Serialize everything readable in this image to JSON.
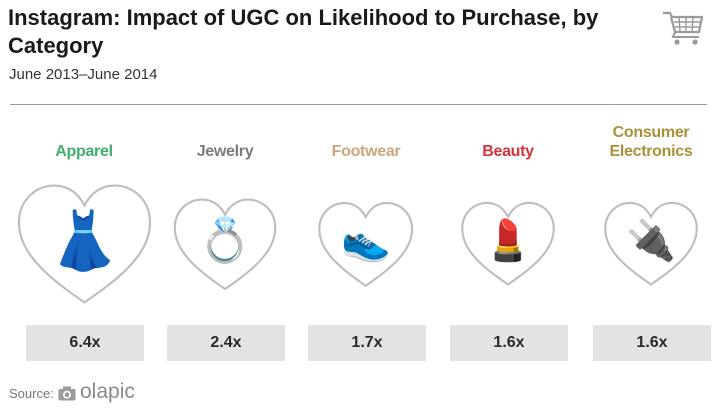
{
  "header": {
    "title": "Instagram: Impact of UGC on Likelihood to Purchase, by Category",
    "subtitle": "June 2013–June 2014"
  },
  "footer": {
    "source_label": "Source:",
    "brand": "olapic"
  },
  "icons": {
    "cart": "shopping-cart-icon",
    "camera": "camera-icon"
  },
  "chart_data": {
    "type": "bar",
    "title": "Instagram: Impact of UGC on Likelihood to Purchase, by Category",
    "subtitle": "June 2013–June 2014",
    "unit": "x",
    "categories": [
      {
        "label": "Apparel",
        "value": 6.4,
        "display": "6.4x",
        "color": "#3fae6e",
        "icon": "dress-icon",
        "glyph": "👗"
      },
      {
        "label": "Jewelry",
        "value": 2.4,
        "display": "2.4x",
        "color": "#7b7b7b",
        "icon": "ring-icon",
        "glyph": "💍"
      },
      {
        "label": "Footwear",
        "value": 1.7,
        "display": "1.7x",
        "color": "#cfa57a",
        "icon": "shoe-icon",
        "glyph": "👟"
      },
      {
        "label": "Beauty",
        "value": 1.6,
        "display": "1.6x",
        "color": "#d4333b",
        "icon": "lipstick-icon",
        "glyph": "💄"
      },
      {
        "label": "Consumer Electronics",
        "value": 1.6,
        "display": "1.6x",
        "color": "#a8913a",
        "icon": "plug-icon",
        "glyph": "🔌"
      }
    ]
  }
}
